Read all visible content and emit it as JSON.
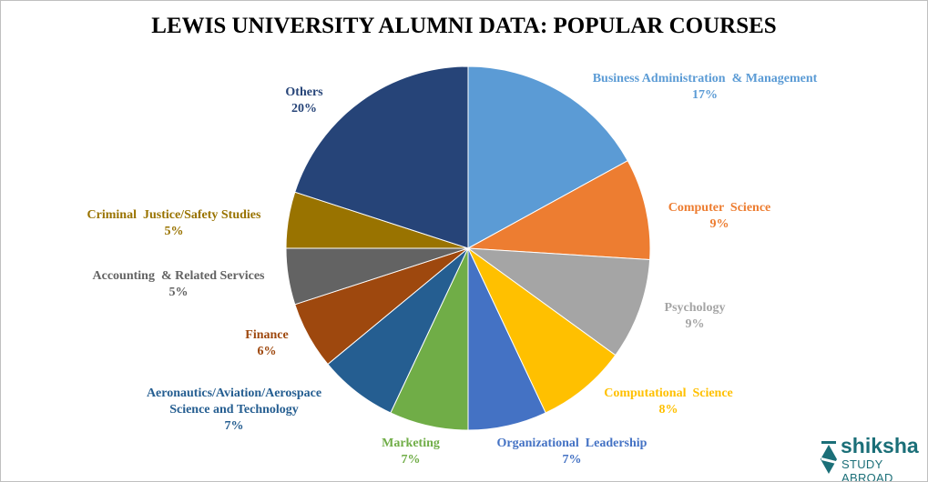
{
  "chart_data": {
    "type": "pie",
    "title": "LEWIS UNIVERSITY ALUMNI DATA: POPULAR COURSES",
    "start": "top, clockwise",
    "slices": [
      {
        "label": "Business Administration  & Management",
        "value": 17,
        "pct": "17%",
        "color": "#5B9BD5",
        "label_color": "#5B9BD5"
      },
      {
        "label": "Computer  Science",
        "value": 9,
        "pct": "9%",
        "color": "#ED7D31",
        "label_color": "#ED7D31"
      },
      {
        "label": "Psychology",
        "value": 9,
        "pct": "9%",
        "color": "#A5A5A5",
        "label_color": "#A5A5A5"
      },
      {
        "label": "Computational  Science",
        "value": 8,
        "pct": "8%",
        "color": "#FFC000",
        "label_color": "#FFC000"
      },
      {
        "label": "Organizational  Leadership",
        "value": 7,
        "pct": "7%",
        "color": "#4472C4",
        "label_color": "#4472C4"
      },
      {
        "label": "Marketing",
        "value": 7,
        "pct": "7%",
        "color": "#70AD47",
        "label_color": "#70AD47"
      },
      {
        "label": "Aeronautics/Aviation/Aerospace\nScience and Technology",
        "value": 7,
        "pct": "7%",
        "color": "#255E91",
        "label_color": "#255E91"
      },
      {
        "label": "Finance",
        "value": 6,
        "pct": "6%",
        "color": "#9E480E",
        "label_color": "#9E480E"
      },
      {
        "label": "Accounting  & Related Services",
        "value": 5,
        "pct": "5%",
        "color": "#636363",
        "label_color": "#636363"
      },
      {
        "label": "Criminal  Justice/Safety Studies",
        "value": 5,
        "pct": "5%",
        "color": "#997300",
        "label_color": "#997300"
      },
      {
        "label": "Others",
        "value": 20,
        "pct": "20%",
        "color": "#264478",
        "label_color": "#264478"
      }
    ]
  },
  "logo": {
    "name": "shiksha",
    "sub": "STUDY ABROAD"
  }
}
